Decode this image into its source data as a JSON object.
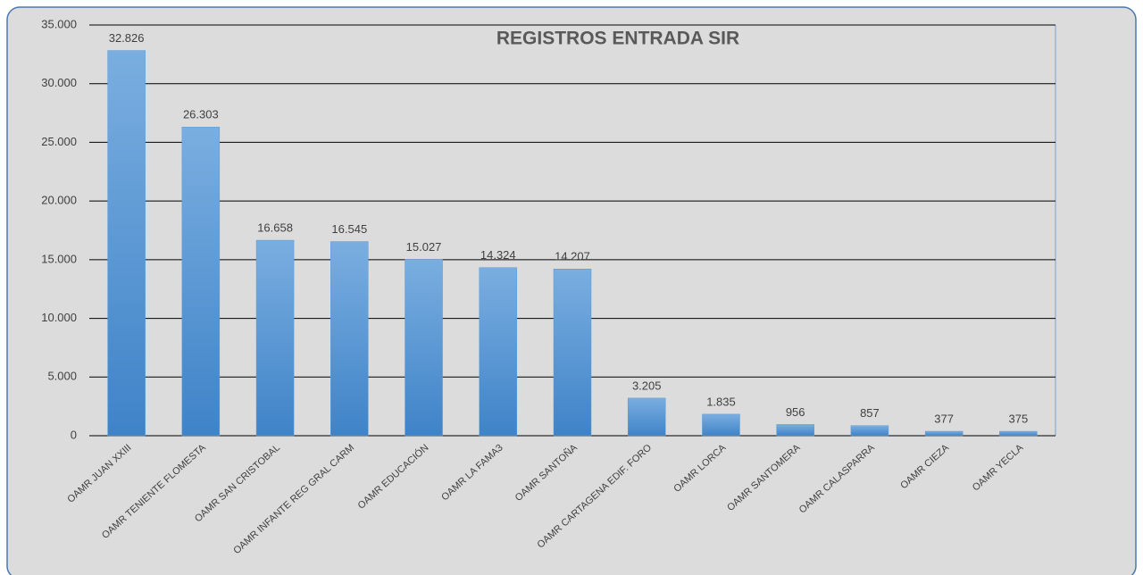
{
  "chart_data": {
    "type": "bar",
    "title": "REGISTROS ENTRADA SIR",
    "categories": [
      "OAMR JUAN XXIII",
      "OAMR TENIENTE FLOMESTA",
      "OAMR SAN CRISTOBAL",
      "OAMR INFANTE REG GRAL CARM",
      "OAMR EDUCACIÓN",
      "OAMR LA FAMA3",
      "OAMR SANTOÑA",
      "OAMR CARTAGENA EDIF. FORO",
      "OAMR LORCA",
      "OAMR SANTOMERA",
      "OAMR CALASPARRA",
      "OAMR CIEZA",
      "OAMR YECLA"
    ],
    "values": [
      32826,
      26303,
      16658,
      16545,
      15027,
      14324,
      14207,
      3205,
      1835,
      956,
      857,
      377,
      375
    ],
    "value_labels": [
      "32.826",
      "26.303",
      "16.658",
      "16.545",
      "15.027",
      "14.324",
      "14.207",
      "3.205",
      "1.835",
      "956",
      "857",
      "377",
      "375"
    ],
    "color": "#5b9bd5",
    "ylim": [
      0,
      35000
    ],
    "yticks": [
      0,
      {
        "value": 5000,
        "label": "5.000"
      },
      {
        "value": 10000,
        "label": "10.000"
      },
      {
        "value": 15000,
        "label": "15.000"
      },
      {
        "value": 20000,
        "label": "20.000"
      },
      {
        "value": 25000,
        "label": "25.000"
      },
      {
        "value": 30000,
        "label": "30.000"
      },
      {
        "value": 35000,
        "label": "35.000"
      }
    ],
    "grid": true
  }
}
